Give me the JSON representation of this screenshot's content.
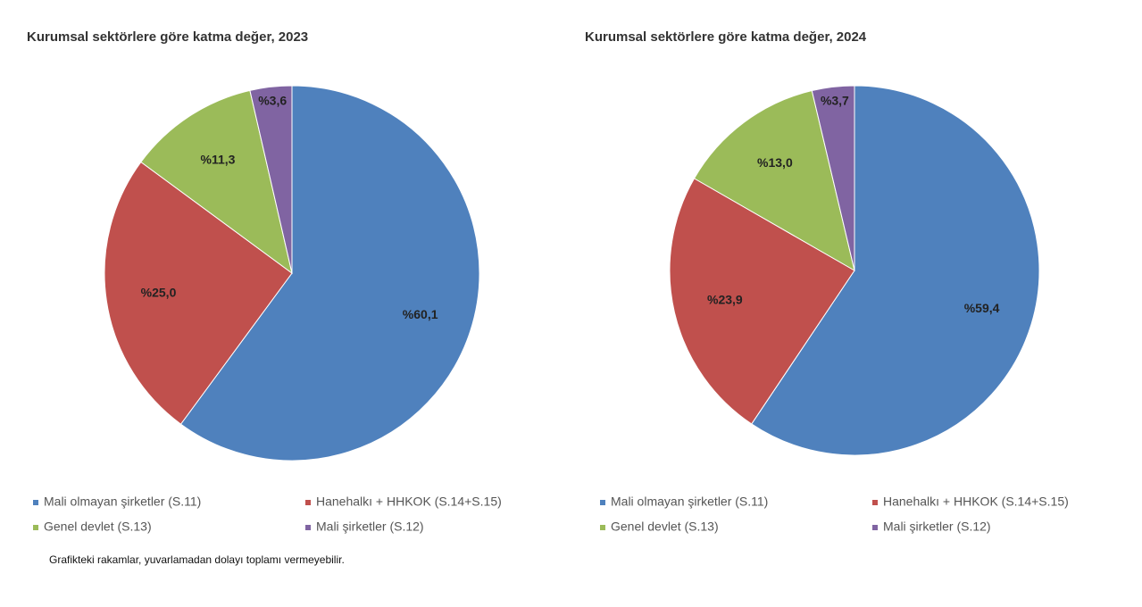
{
  "chart_data": [
    {
      "type": "pie",
      "title": "Kurumsal sektörlere göre katma değer, 2023",
      "categories": [
        "Mali olmayan şirketler (S.11)",
        "Hanehalkı + HHKOK (S.14+S.15)",
        "Genel devlet (S.13)",
        "Mali şirketler (S.12)"
      ],
      "values": [
        60.1,
        25.0,
        11.3,
        3.6
      ],
      "value_labels": [
        "%60,1",
        "%25,0",
        "%11,3",
        "%3,6"
      ],
      "colors": [
        "#4f81bd",
        "#c0504d",
        "#9bbb59",
        "#8064a2"
      ]
    },
    {
      "type": "pie",
      "title": "Kurumsal sektörlere göre katma değer, 2024",
      "categories": [
        "Mali olmayan şirketler (S.11)",
        "Hanehalkı + HHKOK (S.14+S.15)",
        "Genel devlet (S.13)",
        "Mali şirketler (S.12)"
      ],
      "values": [
        59.4,
        23.9,
        13.0,
        3.7
      ],
      "value_labels": [
        "%59,4",
        "%23,9",
        "%13,0",
        "%3,7"
      ],
      "colors": [
        "#4f81bd",
        "#c0504d",
        "#9bbb59",
        "#8064a2"
      ]
    }
  ],
  "note": "Grafikteki rakamlar, yuvarlamadan dolayı toplamı vermeyebilir."
}
